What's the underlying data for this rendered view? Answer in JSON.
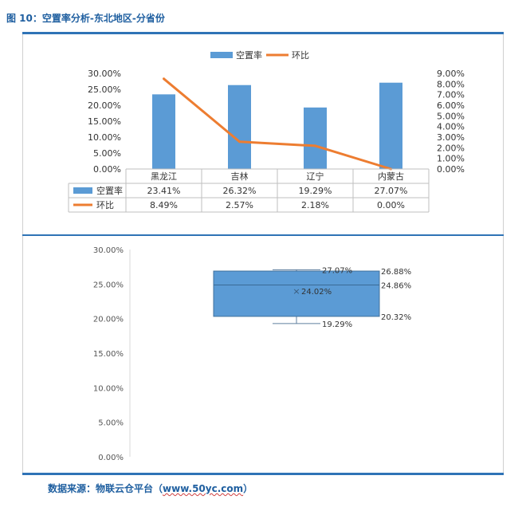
{
  "figure_title": "图 10：空置率分析-东北地区-分省份",
  "source_prefix": "数据来源：物联云仓平台（",
  "source_url": "www.50yc.com",
  "source_suffix": "）",
  "chart_data": [
    {
      "type": "bar",
      "categories": [
        "黑龙江",
        "吉林",
        "辽宁",
        "内蒙古"
      ],
      "series": [
        {
          "name": "空置率",
          "type": "bar",
          "axis": "left",
          "values": [
            23.41,
            26.32,
            19.29,
            27.07
          ],
          "labels": [
            "23.41%",
            "26.32%",
            "19.29%",
            "27.07%"
          ],
          "color": "#5b9bd5"
        },
        {
          "name": "环比",
          "type": "line",
          "axis": "right",
          "values": [
            8.49,
            2.57,
            2.18,
            0.0
          ],
          "labels": [
            "8.49%",
            "2.57%",
            "2.18%",
            "0.00%"
          ],
          "color": "#ed7d31"
        }
      ],
      "y_left": {
        "min": 0,
        "max": 30,
        "step": 5,
        "ticks": [
          "0.00%",
          "5.00%",
          "10.00%",
          "15.00%",
          "20.00%",
          "25.00%",
          "30.00%"
        ]
      },
      "y_right": {
        "min": 0,
        "max": 9,
        "step": 1,
        "ticks": [
          "0.00%",
          "1.00%",
          "2.00%",
          "3.00%",
          "4.00%",
          "5.00%",
          "6.00%",
          "7.00%",
          "8.00%",
          "9.00%"
        ]
      },
      "legend": "top",
      "data_table": true
    },
    {
      "type": "box",
      "min": 19.29,
      "q1": 20.32,
      "median": 24.86,
      "mean": 24.02,
      "q3": 26.88,
      "max": 27.07,
      "labels": {
        "max": "27.07%",
        "q3": "26.88%",
        "median": "24.86%",
        "mean": "24.02%",
        "q1": "20.32%",
        "min": "19.29%"
      },
      "mean_marker": "×",
      "color": "#5b9bd5",
      "y": {
        "min": 0,
        "max": 30,
        "step": 5,
        "ticks": [
          "0.00%",
          "5.00%",
          "10.00%",
          "15.00%",
          "20.00%",
          "25.00%",
          "30.00%"
        ]
      }
    }
  ]
}
